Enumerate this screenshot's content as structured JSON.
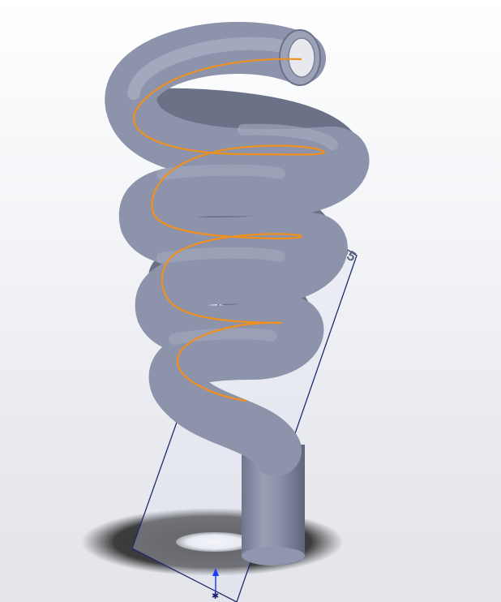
{
  "viewport": {
    "plane_label": "Plane5",
    "colors": {
      "background_top": "#ffffff",
      "background_bottom": "#e3e5ea",
      "tube": "#8c93aa",
      "tube_shadow": "#5f667c",
      "sweep_path": "#f0901e",
      "plane_edge": "#1f2b6e",
      "floor_shadow": "#3a3a3a",
      "triad_arrow": "#1e3cff"
    },
    "icons": [
      "coordinate-triad-icon"
    ]
  }
}
